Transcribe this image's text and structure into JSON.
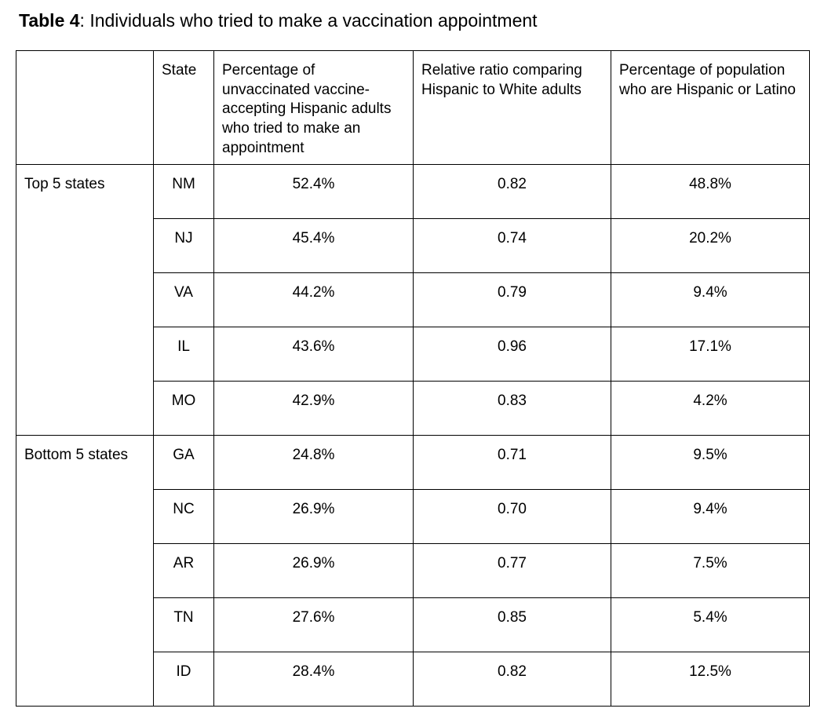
{
  "page": {
    "background": "#ffffff",
    "text_color": "#000000",
    "border_color": "#000000"
  },
  "title": {
    "label": "Table 4",
    "text": ": Individuals who tried to make a vaccination appointment"
  },
  "table": {
    "headers": [
      "",
      "State",
      "Percentage of unvaccinated vaccine-accepting Hispanic adults who tried to make an appointment",
      "Relative ratio comparing Hispanic to White adults",
      "Percentage of population who are Hispanic or Latino"
    ],
    "groups": [
      {
        "label": "Top 5 states",
        "rows": [
          {
            "state": "NM",
            "pct_tried_appointment": "52.4%",
            "relative_ratio": "0.82",
            "pct_hispanic_population": "48.8%"
          },
          {
            "state": "NJ",
            "pct_tried_appointment": "45.4%",
            "relative_ratio": "0.74",
            "pct_hispanic_population": "20.2%"
          },
          {
            "state": "VA",
            "pct_tried_appointment": "44.2%",
            "relative_ratio": "0.79",
            "pct_hispanic_population": "9.4%"
          },
          {
            "state": "IL",
            "pct_tried_appointment": "43.6%",
            "relative_ratio": "0.96",
            "pct_hispanic_population": "17.1%"
          },
          {
            "state": "MO",
            "pct_tried_appointment": "42.9%",
            "relative_ratio": "0.83",
            "pct_hispanic_population": "4.2%"
          }
        ]
      },
      {
        "label": "Bottom 5 states",
        "rows": [
          {
            "state": "GA",
            "pct_tried_appointment": "24.8%",
            "relative_ratio": "0.71",
            "pct_hispanic_population": "9.5%"
          },
          {
            "state": "NC",
            "pct_tried_appointment": "26.9%",
            "relative_ratio": "0.70",
            "pct_hispanic_population": "9.4%"
          },
          {
            "state": "AR",
            "pct_tried_appointment": "26.9%",
            "relative_ratio": "0.77",
            "pct_hispanic_population": "7.5%"
          },
          {
            "state": "TN",
            "pct_tried_appointment": "27.6%",
            "relative_ratio": "0.85",
            "pct_hispanic_population": "5.4%"
          },
          {
            "state": "ID",
            "pct_tried_appointment": "28.4%",
            "relative_ratio": "0.82",
            "pct_hispanic_population": "12.5%"
          }
        ]
      }
    ]
  }
}
